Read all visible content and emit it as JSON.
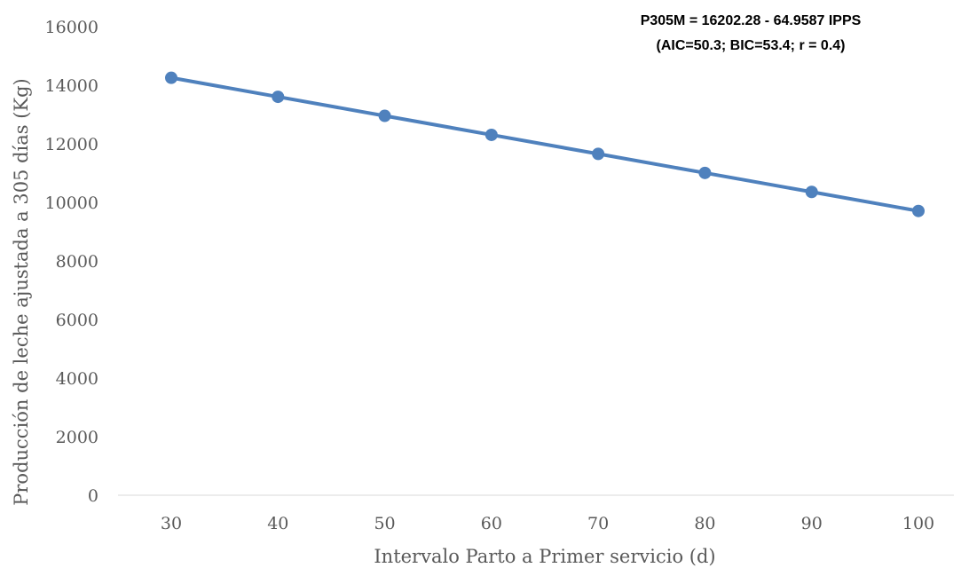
{
  "chart_data": {
    "type": "line",
    "title": "",
    "xlabel": "Intervalo Parto a Primer servicio (d)",
    "ylabel": "Producción de leche ajustada a 305 días (Kg)",
    "x": [
      30,
      40,
      50,
      60,
      70,
      80,
      90,
      100
    ],
    "series": [
      {
        "values": [
          14253,
          13604,
          12954,
          12304,
          11655,
          11005,
          10356,
          9706
        ],
        "color": "#4F81BD"
      }
    ],
    "ylim": [
      0,
      16000
    ],
    "yticks": [
      "0",
      "2000",
      "4000",
      "6000",
      "8000",
      "10000",
      "12000",
      "14000",
      "16000"
    ],
    "xticks": [
      "30",
      "40",
      "50",
      "60",
      "70",
      "80",
      "90",
      "100"
    ],
    "grid": false,
    "legend": "none",
    "annotation": {
      "line1": "P305M = 16202.28 -  64.9587 IPPS",
      "line2": "(AIC=50.3; BIC=53.4; r = 0.4)"
    },
    "colors": {
      "series": "#4F81BD",
      "axis_line": "#D9D9D9",
      "text": "#595959"
    }
  }
}
